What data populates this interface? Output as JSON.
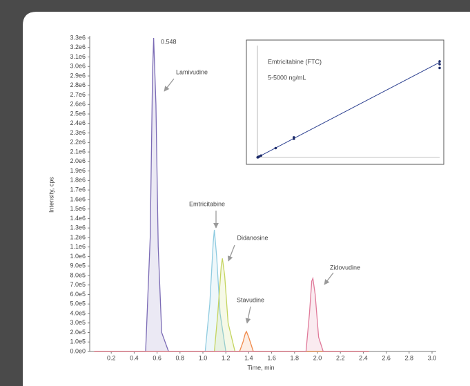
{
  "chart_data": [
    {
      "type": "line",
      "x_label": "Time, min",
      "y_label": "Intensity, cps",
      "peak_label": "0.548",
      "xlim": [
        0,
        3.0
      ],
      "ylim": [
        0,
        3300000
      ],
      "xticks": [
        0.2,
        0.4,
        0.6,
        0.8,
        {
          "value": 1,
          "label": "1.0"
        },
        1.2,
        1.4,
        1.6,
        1.8,
        {
          "value": 2,
          "label": "2.0"
        },
        2.2,
        2.4,
        2.6,
        2.8,
        {
          "value": 3,
          "label": "3.0"
        }
      ],
      "yticks": [
        {
          "value": 0,
          "label": "0.0e0"
        },
        {
          "value": 100000,
          "label": "1.0e5"
        },
        {
          "value": 200000,
          "label": "2.0e5"
        },
        {
          "value": 300000,
          "label": "3.0e5"
        },
        {
          "value": 400000,
          "label": "4.0e5"
        },
        {
          "value": 500000,
          "label": "5.0e5"
        },
        {
          "value": 600000,
          "label": "6.0e5"
        },
        {
          "value": 700000,
          "label": "7.0e5"
        },
        {
          "value": 800000,
          "label": "8.0e5"
        },
        {
          "value": 900000,
          "label": "9.0e5"
        },
        {
          "value": 1000000,
          "label": "1.0e6"
        },
        {
          "value": 1100000,
          "label": "1.1e6"
        },
        {
          "value": 1200000,
          "label": "1.2e6"
        },
        {
          "value": 1300000,
          "label": "1.3e6"
        },
        {
          "value": 1400000,
          "label": "1.4e6"
        },
        {
          "value": 1500000,
          "label": "1.5e6"
        },
        {
          "value": 1600000,
          "label": "1.6e6"
        },
        {
          "value": 1700000,
          "label": "1.7e6"
        },
        {
          "value": 1800000,
          "label": "1.8e6"
        },
        {
          "value": 1900000,
          "label": "1.9e6"
        },
        {
          "value": 2000000,
          "label": "2.0e6"
        },
        {
          "value": 2100000,
          "label": "2.1e6"
        },
        {
          "value": 2200000,
          "label": "2.2e6"
        },
        {
          "value": 2300000,
          "label": "2.3e6"
        },
        {
          "value": 2400000,
          "label": "2.4e6"
        },
        {
          "value": 2500000,
          "label": "2.5e6"
        },
        {
          "value": 2600000,
          "label": "2.6e6"
        },
        {
          "value": 2700000,
          "label": "2.7e6"
        },
        {
          "value": 2800000,
          "label": "2.8e6"
        },
        {
          "value": 2900000,
          "label": "2.9e6"
        },
        {
          "value": 3000000,
          "label": "3.0e6"
        },
        {
          "value": 3100000,
          "label": "3.1e6"
        },
        {
          "value": 3200000,
          "label": "3.2e6"
        },
        {
          "value": 3300000,
          "label": "3.3e6"
        }
      ],
      "series": [
        {
          "name": "Lamivudine",
          "color": "#7b6bb5",
          "x": [
            0.05,
            0.5,
            0.54,
            0.56,
            0.57,
            0.59,
            0.61,
            0.64,
            0.7,
            2.45
          ],
          "values": [
            0,
            0,
            1200000,
            2900000,
            3300000,
            2600000,
            1100000,
            200000,
            0,
            0
          ]
        },
        {
          "name": "Emtricitabine",
          "color": "#8fcbe0",
          "x": [
            0.05,
            1.02,
            1.06,
            1.09,
            1.1,
            1.12,
            1.15,
            1.2,
            2.45
          ],
          "values": [
            0,
            0,
            500000,
            1150000,
            1280000,
            1000000,
            400000,
            0,
            0
          ]
        },
        {
          "name": "Didanosine",
          "color": "#c4d45e",
          "x": [
            0.05,
            1.1,
            1.13,
            1.16,
            1.17,
            1.19,
            1.22,
            1.28,
            2.45
          ],
          "values": [
            0,
            0,
            400000,
            900000,
            980000,
            800000,
            300000,
            0,
            0
          ]
        },
        {
          "name": "Stavudine",
          "color": "#f08a4b",
          "x": [
            0.05,
            1.32,
            1.35,
            1.37,
            1.38,
            1.4,
            1.44,
            2.45
          ],
          "values": [
            0,
            0,
            100000,
            190000,
            210000,
            150000,
            0,
            0
          ]
        },
        {
          "name": "Zidovudine",
          "color": "#e07a9a",
          "x": [
            0.05,
            1.9,
            1.93,
            1.95,
            1.96,
            1.98,
            2.01,
            2.05,
            2.45
          ],
          "values": [
            0,
            0,
            400000,
            740000,
            770000,
            600000,
            150000,
            0,
            0
          ]
        }
      ]
    },
    {
      "type": "scatter",
      "title": "Emtricitabine (FTC)",
      "subtitle": "5-5000 ng/mL",
      "xlim": [
        0,
        5000
      ],
      "ylim": [
        0,
        120
      ],
      "x": [
        5,
        10,
        20,
        50,
        100,
        500,
        1000,
        1000,
        5000,
        5000,
        5000
      ],
      "values": [
        0.1,
        0.2,
        0.4,
        1,
        2,
        10,
        20,
        21.5,
        100,
        103,
        96
      ],
      "color": "#1f2d6b",
      "fit": {
        "color": "#2b3f8f",
        "x": [
          0,
          5000
        ],
        "values": [
          0,
          102
        ]
      }
    }
  ]
}
